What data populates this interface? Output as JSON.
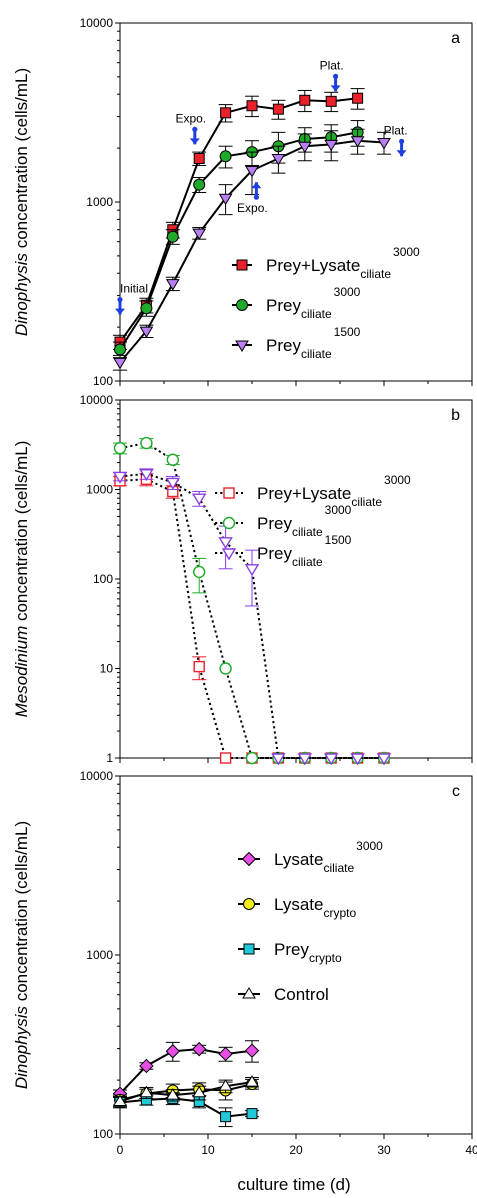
{
  "figure": {
    "xlabel": "culture time (d)",
    "xlim": [
      0,
      40
    ],
    "xticks": [
      0,
      10,
      20,
      30,
      40
    ]
  },
  "chart_data": [
    {
      "panel": "a",
      "type": "line",
      "ylabel_italic": "Dinophysis",
      "ylabel_rest": " concentration (cells/mL)",
      "yscale": "log",
      "ylim": [
        100,
        10000
      ],
      "yticks": [
        100,
        1000,
        10000
      ],
      "legend_position": "lower-right",
      "series": [
        {
          "name": "Prey+Lysate",
          "sub": "ciliate",
          "sup": "3000",
          "color": "#e8212a",
          "marker": "square",
          "filled": true,
          "linestyle": "solid",
          "x": [
            0,
            3,
            6,
            9,
            12,
            15,
            18,
            21,
            24,
            27
          ],
          "y": [
            165,
            265,
            700,
            1750,
            3150,
            3450,
            3300,
            3700,
            3650,
            3800
          ],
          "err": [
            15,
            25,
            70,
            150,
            350,
            450,
            400,
            500,
            450,
            500
          ]
        },
        {
          "name": "Prey",
          "sub": "ciliate",
          "sup": "3000",
          "color": "#1faa2a",
          "marker": "circle",
          "filled": true,
          "linestyle": "solid",
          "x": [
            0,
            3,
            6,
            9,
            12,
            15,
            18,
            21,
            24,
            27
          ],
          "y": [
            150,
            255,
            640,
            1250,
            1800,
            1900,
            2050,
            2250,
            2300,
            2450
          ],
          "err": [
            15,
            25,
            60,
            120,
            250,
            300,
            400,
            350,
            400,
            400
          ]
        },
        {
          "name": "Prey",
          "sub": "ciliate",
          "sup": "1500",
          "color": "#b97ef2",
          "marker": "triangle-down",
          "filled": true,
          "linestyle": "solid",
          "x": [
            0,
            3,
            6,
            9,
            12,
            15,
            18,
            21,
            24,
            27,
            30
          ],
          "y": [
            127,
            190,
            350,
            670,
            1050,
            1500,
            1750,
            2050,
            2100,
            2200,
            2150
          ],
          "err": [
            12,
            15,
            30,
            50,
            200,
            400,
            300,
            350,
            400,
            350,
            300
          ]
        }
      ],
      "annotations": [
        {
          "text": "Initial",
          "x": 0,
          "y": 235,
          "arrow_dir": "down"
        },
        {
          "text": "Expo.",
          "x": 8.5,
          "y": 2100,
          "arrow_dir": "down"
        },
        {
          "text": "Expo.",
          "x": 15.5,
          "y": 1290,
          "arrow_dir": "up"
        },
        {
          "text": "Plat.",
          "x": 24.5,
          "y": 4150,
          "arrow_dir": "down"
        },
        {
          "text": "Plat.",
          "x": 32,
          "y": 1800,
          "arrow_dir": "down"
        }
      ]
    },
    {
      "panel": "b",
      "type": "line",
      "ylabel_italic": "Mesodinium",
      "ylabel_rest": " concentration (cells/mL)",
      "yscale": "log",
      "ylim": [
        1,
        10000
      ],
      "yticks": [
        1,
        10,
        100,
        1000,
        10000
      ],
      "legend_position": "top-right",
      "series": [
        {
          "name": "Prey+Lysate",
          "sub": "ciliate",
          "sup": "3000",
          "color": "#e8212a",
          "marker": "square",
          "filled": false,
          "linestyle": "dotted",
          "x": [
            0,
            3,
            6,
            9,
            12,
            15,
            18,
            21,
            24,
            27,
            30
          ],
          "y": [
            1250,
            1300,
            950,
            10.5,
            1,
            1,
            1,
            1,
            1,
            1,
            1
          ],
          "err": [
            150,
            200,
            150,
            3,
            0,
            0,
            0,
            0,
            0,
            0,
            0
          ]
        },
        {
          "name": "Prey",
          "sub": "ciliate",
          "sup": "3000",
          "color": "#1faa2a",
          "marker": "circle",
          "filled": false,
          "linestyle": "dotted",
          "x": [
            0,
            3,
            6,
            9,
            12,
            15,
            18,
            21,
            24,
            27,
            30
          ],
          "y": [
            2900,
            3300,
            2150,
            120,
            10,
            1,
            1,
            1,
            1,
            1,
            1
          ],
          "err": [
            400,
            400,
            250,
            50,
            0,
            0,
            0,
            0,
            0,
            0,
            0
          ]
        },
        {
          "name": "Prey",
          "sub": "ciliate",
          "sup": "1500",
          "color": "#8a3ee0",
          "marker": "triangle-down",
          "filled": false,
          "linestyle": "dotted",
          "x": [
            0,
            3,
            6,
            9,
            12,
            15,
            18,
            21,
            24,
            27,
            30
          ],
          "y": [
            1400,
            1500,
            1200,
            800,
            260,
            130,
            1,
            1,
            1,
            1,
            1
          ],
          "err": [
            150,
            200,
            200,
            150,
            130,
            80,
            0,
            0,
            0,
            0,
            0
          ]
        }
      ]
    },
    {
      "panel": "c",
      "type": "line",
      "ylabel_italic": "Dinophysis",
      "ylabel_rest": " concentration (cells/mL)",
      "yscale": "log",
      "ylim": [
        100,
        10000
      ],
      "yticks": [
        100,
        1000,
        10000
      ],
      "legend_position": "top-center",
      "series": [
        {
          "name": "Lysate",
          "sub": "ciliate",
          "sup": "3000",
          "color": "#e64ee6",
          "marker": "diamond",
          "filled": true,
          "linestyle": "solid",
          "x": [
            0,
            3,
            6,
            9,
            12,
            15
          ],
          "y": [
            168,
            240,
            290,
            298,
            280,
            292
          ],
          "err": [
            8,
            10,
            35,
            15,
            25,
            40
          ]
        },
        {
          "name": "Lysate",
          "sub": "crypto",
          "sup": "",
          "color": "#f2ee1e",
          "marker": "circle",
          "filled": true,
          "linestyle": "solid",
          "x": [
            0,
            3,
            6,
            9,
            12,
            15
          ],
          "y": [
            155,
            168,
            175,
            178,
            175,
            190
          ],
          "err": [
            10,
            10,
            15,
            15,
            20,
            12
          ]
        },
        {
          "name": "Prey",
          "sub": "crypto",
          "sup": "",
          "color": "#20c8d8",
          "marker": "square",
          "filled": true,
          "linestyle": "solid",
          "x": [
            0,
            3,
            6,
            9,
            12,
            15
          ],
          "y": [
            150,
            155,
            158,
            152,
            125,
            130
          ],
          "err": [
            10,
            10,
            12,
            12,
            15,
            5
          ]
        },
        {
          "name": "Control",
          "sub": "",
          "sup": "",
          "color": "#ffffff",
          "marker": "triangle-up",
          "filled": false,
          "linestyle": "solid",
          "x": [
            0,
            3,
            6,
            9,
            12,
            15
          ],
          "y": [
            152,
            170,
            165,
            170,
            185,
            195
          ],
          "err": [
            10,
            12,
            12,
            15,
            15,
            12
          ]
        }
      ]
    }
  ]
}
